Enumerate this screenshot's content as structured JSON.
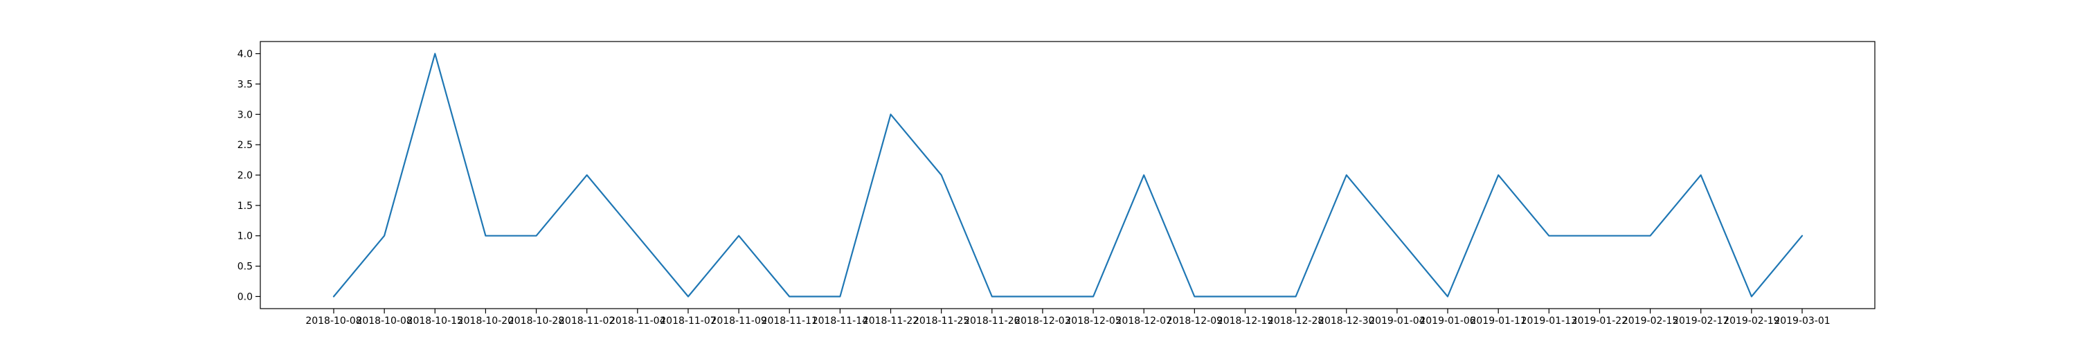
{
  "chart_data": {
    "type": "line",
    "title": "",
    "xlabel": "",
    "ylabel": "",
    "categories": [
      "2018-10-08",
      "2018-10-08",
      "2018-10-15",
      "2018-10-20",
      "2018-10-28",
      "2018-11-02",
      "2018-11-04",
      "2018-11-07",
      "2018-11-09",
      "2018-11-11",
      "2018-11-14",
      "2018-11-22",
      "2018-11-25",
      "2018-11-26",
      "2018-12-03",
      "2018-12-05",
      "2018-12-07",
      "2018-12-09",
      "2018-12-19",
      "2018-12-28",
      "2018-12-30",
      "2019-01-04",
      "2019-01-06",
      "2019-01-11",
      "2019-01-13",
      "2019-01-22",
      "2019-02-15",
      "2019-02-17",
      "2019-02-19",
      "2019-03-01"
    ],
    "series": [
      {
        "values": [
          0,
          1,
          4,
          1,
          1,
          2,
          1,
          0,
          1,
          0,
          0,
          3,
          2,
          0,
          0,
          0,
          2,
          0,
          0,
          0,
          2,
          1,
          0,
          2,
          1,
          1,
          1,
          2,
          0,
          1
        ],
        "color": "#1f77b4"
      }
    ],
    "ylim": [
      -0.2,
      4.2
    ],
    "yticks": [
      0.0,
      0.5,
      1.0,
      1.5,
      2.0,
      2.5,
      3.0,
      3.5,
      4.0
    ],
    "ytick_labels": [
      "0.0",
      "0.5",
      "1.0",
      "1.5",
      "2.0",
      "2.5",
      "3.0",
      "3.5",
      "4.0"
    ],
    "grid": false,
    "legend": "none"
  }
}
